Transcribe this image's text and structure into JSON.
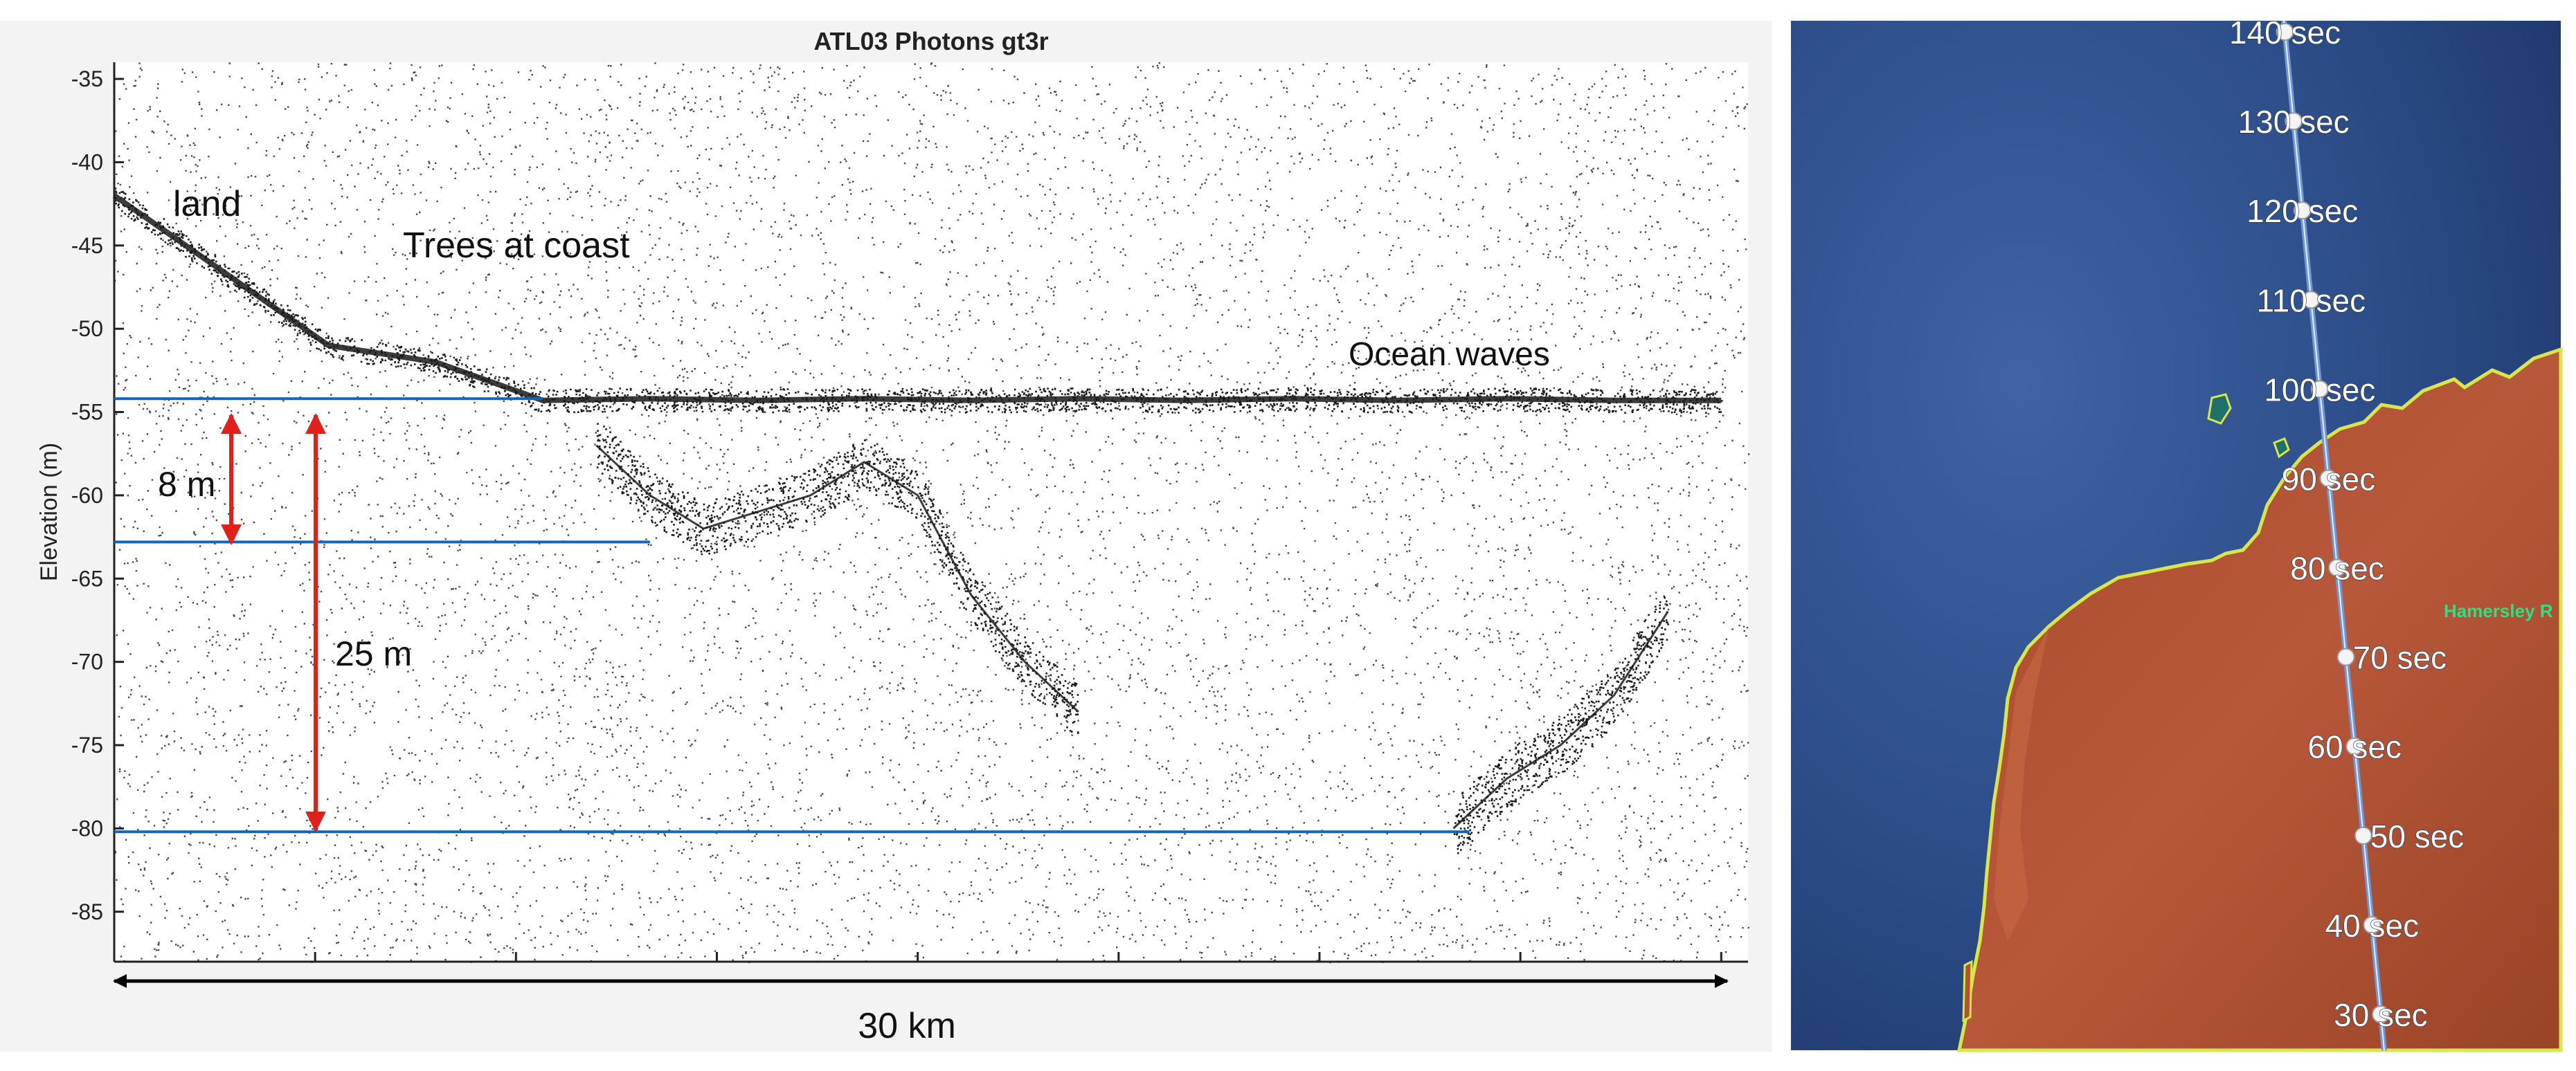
{
  "chart_data": {
    "type": "scatter",
    "title": "ATL03 Photons gt3r",
    "xlabel": "",
    "ylabel": "Elevation (m)",
    "ylim": [
      -88,
      -34
    ],
    "yticks": [
      -35,
      -40,
      -45,
      -50,
      -55,
      -60,
      -65,
      -70,
      -75,
      -80,
      -85
    ],
    "grid": false,
    "legend": "none",
    "colors": {
      "photons": "#1a1a1a",
      "reference_lines": "#1565c0",
      "arrows": "#e0201b",
      "scale_arrow": "#000000"
    },
    "series": [
      {
        "x": [
          0,
          2,
          4,
          6,
          8,
          10,
          12,
          14,
          16,
          18,
          20,
          22,
          24,
          26,
          28,
          30
        ],
        "y": [
          -42,
          -46.5,
          -51,
          -52,
          -54.3,
          -54.2,
          -54.3,
          -54.2,
          -54.3,
          -54.2,
          -54.3,
          -54.2,
          -54.3,
          -54.2,
          -54.3,
          -54.3
        ]
      },
      {
        "x": [
          9,
          10,
          11,
          12,
          13,
          14,
          15,
          16,
          17,
          18
        ],
        "y": [
          -57,
          -60,
          -62,
          -61,
          -60,
          -58,
          -60,
          -66,
          -70,
          -73
        ]
      },
      {
        "x": [
          25,
          26,
          27,
          28,
          29
        ],
        "y": [
          -80,
          -77,
          -75,
          -72,
          -67
        ]
      }
    ],
    "reference_lines": [
      {
        "y": -54.2,
        "x_start": 0,
        "x_end": 8
      },
      {
        "y": -62.8,
        "x_start": 0,
        "x_end": 10
      },
      {
        "y": -80.2,
        "x_start": 0,
        "x_end": 25.3
      }
    ],
    "annotations": [
      {
        "text": "land"
      },
      {
        "text": "Trees at coast"
      },
      {
        "text": "Ocean waves"
      },
      {
        "text": "8 m"
      },
      {
        "text": "25 m"
      },
      {
        "text": "30 km"
      }
    ]
  },
  "map": {
    "track_labels": [
      "140 sec",
      "130 sec",
      "120 sec",
      "110 sec",
      "100 sec",
      "90 sec",
      "80 sec",
      "70 sec",
      "60 sec",
      "50 sec",
      "40 sec",
      "30 sec"
    ],
    "place_label": "Hamersley R",
    "colors": {
      "ocean": "#2d4f8a",
      "land": "#b2522f",
      "coastline": "#d7e64a",
      "track": "#6f97d6",
      "place_label": "#2ee07f"
    }
  }
}
